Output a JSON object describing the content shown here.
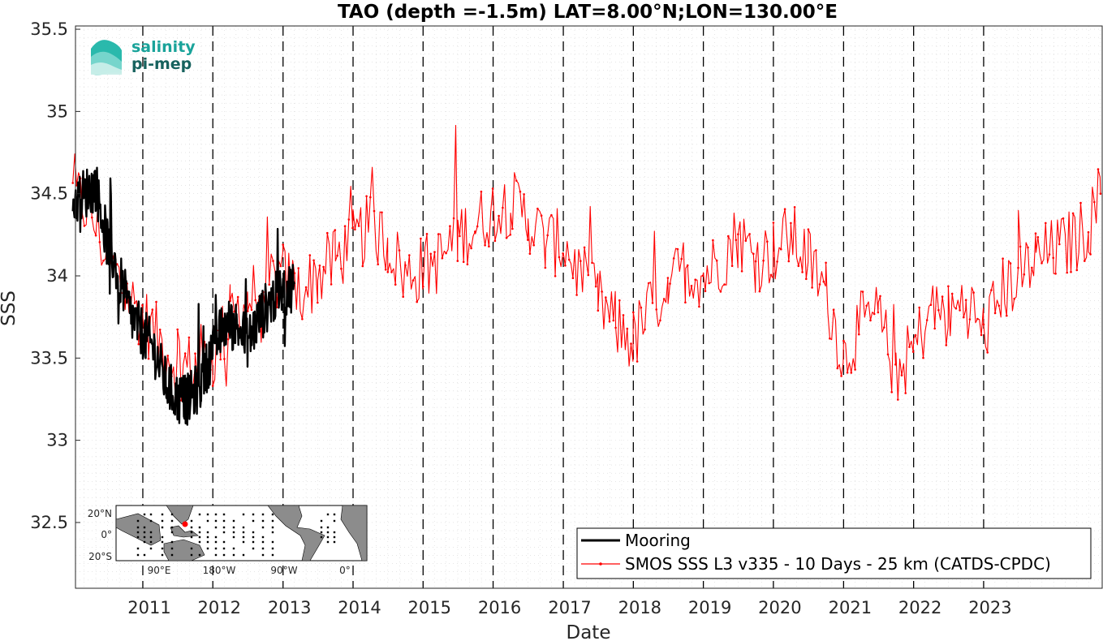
{
  "logo": {
    "line1": "salinity",
    "line2": "pi-mep",
    "color1": "#1aa39a",
    "color2": "#17625e"
  },
  "chart_data": {
    "type": "line",
    "title": "TAO (depth =-1.5m) LAT=8.00°N;LON=130.00°E",
    "xlabel": "Date",
    "ylabel": "SSS",
    "xlim": [
      "2010-01-15",
      "2024-09-10"
    ],
    "ylim": [
      32.1,
      35.52
    ],
    "yticks": [
      "32.5",
      "33",
      "33.5",
      "34",
      "34.5",
      "35",
      "35.5"
    ],
    "xticks": [
      "2011",
      "2012",
      "2013",
      "2014",
      "2015",
      "2016",
      "2017",
      "2018",
      "2019",
      "2020",
      "2021",
      "2022",
      "2023"
    ],
    "grid": true,
    "legend_position": "bottom-right",
    "series": [
      {
        "name": "Mooring",
        "color": "#000000",
        "x": [
          "2010-01",
          "2010-03",
          "2010-05",
          "2010-07",
          "2010-09",
          "2010-11",
          "2011-01",
          "2011-03",
          "2011-05",
          "2011-07",
          "2011-09",
          "2011-11",
          "2012-01",
          "2012-03",
          "2012-05",
          "2012-07",
          "2012-09",
          "2012-11",
          "2013-01",
          "2013-03"
        ],
        "y": [
          34.45,
          34.5,
          34.55,
          34.2,
          34.0,
          33.75,
          33.65,
          33.55,
          33.35,
          33.25,
          33.25,
          33.35,
          33.55,
          33.7,
          33.7,
          33.6,
          33.75,
          33.85,
          33.9,
          33.95
        ]
      },
      {
        "name": "SMOS SSS L3 v335 - 10 Days - 25 km (CATDS-CPDC)",
        "color": "#ff0000",
        "x": [
          "2010-01",
          "2010-04",
          "2010-07",
          "2010-10",
          "2011-01",
          "2011-04",
          "2011-07",
          "2011-10",
          "2012-01",
          "2012-04",
          "2012-07",
          "2012-10",
          "2013-01",
          "2013-04",
          "2013-07",
          "2013-10",
          "2014-01",
          "2014-04",
          "2014-07",
          "2014-10",
          "2015-01",
          "2015-04",
          "2015-07",
          "2015-10",
          "2016-01",
          "2016-04",
          "2016-07",
          "2016-10",
          "2017-01",
          "2017-04",
          "2017-07",
          "2017-10",
          "2018-01",
          "2018-04",
          "2018-07",
          "2018-10",
          "2019-01",
          "2019-04",
          "2019-07",
          "2019-10",
          "2020-01",
          "2020-04",
          "2020-07",
          "2020-10",
          "2021-01",
          "2021-04",
          "2021-07",
          "2021-10",
          "2022-01",
          "2022-04",
          "2022-07",
          "2022-10",
          "2023-01",
          "2023-04",
          "2023-07",
          "2023-10",
          "2024-01",
          "2024-04",
          "2024-07",
          "2024-09"
        ],
        "y": [
          34.5,
          34.4,
          34.1,
          33.9,
          33.75,
          33.6,
          33.45,
          33.45,
          33.5,
          33.75,
          33.85,
          33.95,
          34.0,
          33.9,
          34.0,
          34.1,
          34.2,
          34.3,
          34.2,
          34.0,
          34.05,
          34.1,
          34.25,
          34.3,
          34.4,
          34.45,
          34.35,
          34.2,
          34.2,
          34.0,
          33.85,
          33.7,
          33.6,
          33.8,
          33.95,
          34.05,
          34.0,
          34.1,
          34.25,
          34.1,
          34.15,
          34.25,
          34.1,
          33.9,
          33.5,
          33.7,
          33.75,
          33.4,
          33.55,
          33.8,
          33.75,
          33.85,
          33.65,
          33.9,
          34.0,
          34.1,
          34.15,
          34.2,
          34.3,
          34.5
        ]
      }
    ]
  },
  "inset_map": {
    "lat_ticks": [
      "20°N",
      "0°",
      "20°S"
    ],
    "lon_ticks": [
      "90°E",
      "180°W",
      "90°W",
      "0°"
    ],
    "site_color": "#ff0000"
  }
}
